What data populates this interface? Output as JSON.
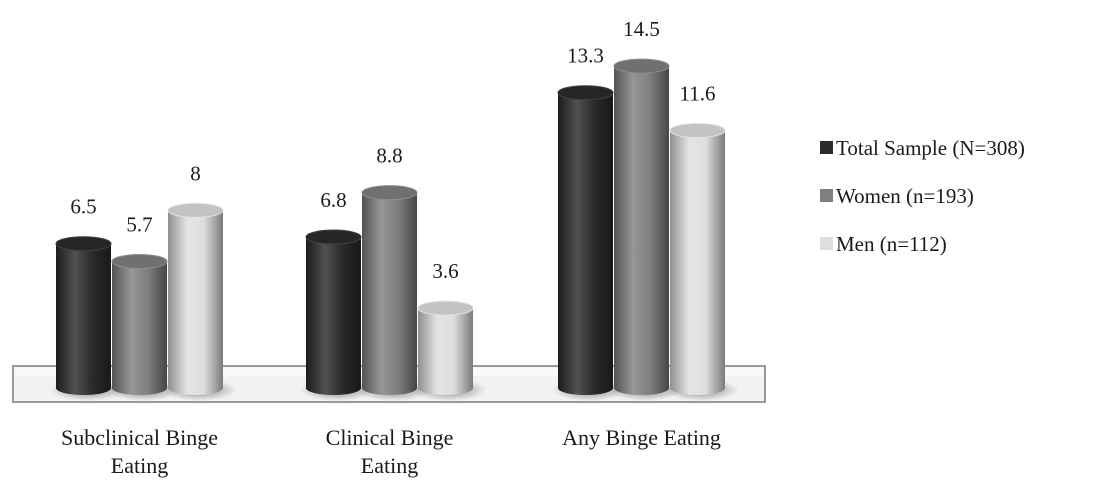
{
  "chart_data": {
    "type": "bar",
    "style": "3d-cylinder",
    "categories": [
      [
        "Subclinical Binge",
        "Eating"
      ],
      [
        "Clinical Binge",
        "Eating"
      ],
      [
        "Any Binge Eating"
      ]
    ],
    "series": [
      {
        "name": "Total Sample (N=308)",
        "values": [
          6.5,
          6.8,
          13.3
        ],
        "color": "#2b2b2b"
      },
      {
        "name": "Women (n=193)",
        "values": [
          5.7,
          8.8,
          14.5
        ],
        "color": "#7f7f7f"
      },
      {
        "name": "Men (n=112)",
        "values": [
          8,
          3.6,
          11.6
        ],
        "color": "#dedede"
      }
    ],
    "data_labels": [
      [
        "6.5",
        "6.8",
        "13.3"
      ],
      [
        "5.7",
        "8.8",
        "14.5"
      ],
      [
        "8",
        "3.6",
        "11.6"
      ]
    ],
    "ylim": [
      0,
      16
    ],
    "grid": false,
    "legend_position": "right"
  }
}
